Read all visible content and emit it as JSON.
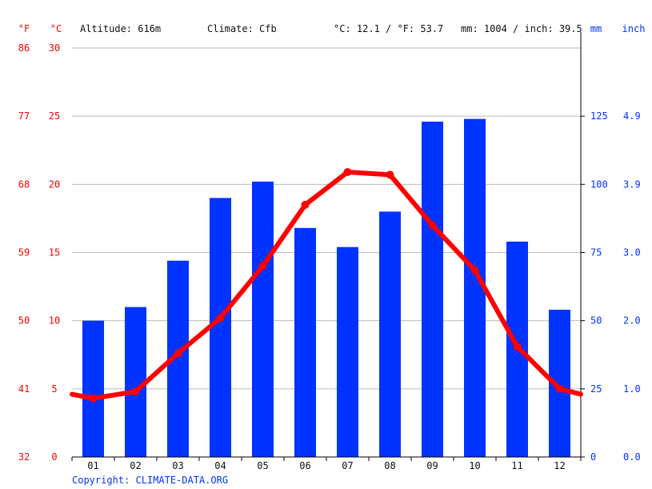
{
  "header": {
    "unit_f": "°F",
    "unit_c": "°C",
    "altitude": "Altitude: 616m",
    "climate": "Climate: Cfb",
    "temp_avg": "°C: 12.1 / °F: 53.7",
    "precip_total": "mm: 1004 / inch: 39.5",
    "unit_mm": "mm",
    "unit_inch": "inch"
  },
  "footer": {
    "copyright": "Copyright: CLIMATE-DATA.ORG"
  },
  "colors": {
    "temperature": "#ff0000",
    "precipitation": "#0033ff",
    "grid": "#bbbbbb",
    "axis": "#000000"
  },
  "chart_data": {
    "type": "bar+line",
    "categories": [
      "01",
      "02",
      "03",
      "04",
      "05",
      "06",
      "07",
      "08",
      "09",
      "10",
      "11",
      "12"
    ],
    "precipitation_mm": [
      50,
      55,
      72,
      95,
      101,
      84,
      77,
      90,
      123,
      124,
      79,
      54
    ],
    "temperature_c": [
      4.3,
      4.8,
      7.6,
      10.2,
      14.0,
      18.5,
      20.9,
      20.7,
      17.0,
      13.7,
      8.1,
      5.0
    ],
    "temperature_edges_c": [
      4.6,
      4.6
    ],
    "axis_left_c": {
      "ticks": [
        "0",
        "5",
        "10",
        "15",
        "20",
        "25",
        "30"
      ],
      "values": [
        0,
        5,
        10,
        15,
        20,
        25,
        30
      ],
      "range": [
        0,
        30
      ]
    },
    "axis_left_f": {
      "ticks": [
        "32",
        "41",
        "50",
        "59",
        "68",
        "77",
        "86"
      ]
    },
    "axis_right_mm": {
      "ticks": [
        "0",
        "25",
        "50",
        "75",
        "100",
        "125"
      ],
      "values": [
        0,
        25,
        50,
        75,
        100,
        125
      ],
      "range": [
        0,
        150
      ]
    },
    "axis_right_inch": {
      "ticks": [
        "0.0",
        "1.0",
        "2.0",
        "3.0",
        "3.9",
        "4.9"
      ]
    },
    "grid": true
  }
}
